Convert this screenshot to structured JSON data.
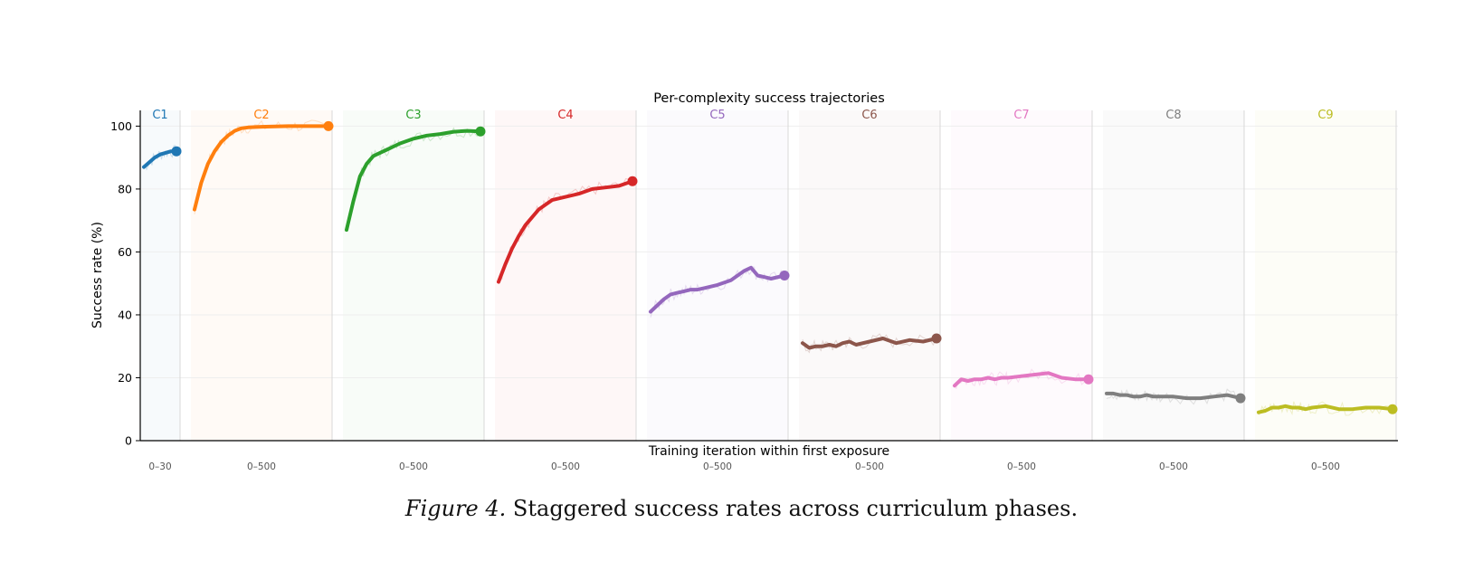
{
  "chart_data": {
    "type": "line",
    "title": "Per-complexity success trajectories",
    "xlabel": "Training iteration within first exposure",
    "ylabel": "Success rate (%)",
    "ylim": [
      0,
      105
    ],
    "yticks": [
      "0",
      "20",
      "40",
      "60",
      "80",
      "100"
    ],
    "grid": true,
    "series": [
      {
        "name": "C1",
        "range_label": "0–30",
        "color": "#1f77b4",
        "x": [
          0,
          5,
          10,
          15,
          20,
          25,
          30
        ],
        "values": [
          87,
          88.5,
          90,
          91,
          91.5,
          92,
          92
        ]
      },
      {
        "name": "C2",
        "range_label": "0–500",
        "color": "#ff7f0e",
        "x": [
          0,
          25,
          50,
          75,
          100,
          125,
          150,
          175,
          200,
          250,
          300,
          350,
          400,
          450,
          500
        ],
        "values": [
          73.5,
          82,
          88,
          92,
          95,
          97,
          98.5,
          99.3,
          99.6,
          99.8,
          99.9,
          100,
          100,
          100,
          100
        ]
      },
      {
        "name": "C3",
        "range_label": "0–500",
        "color": "#2ca02c",
        "x": [
          0,
          25,
          50,
          75,
          100,
          125,
          150,
          175,
          200,
          250,
          300,
          350,
          400,
          450,
          500
        ],
        "values": [
          67,
          76,
          84,
          88,
          90.5,
          91.5,
          92.5,
          93.5,
          94.5,
          96,
          97,
          97.5,
          98.2,
          98.5,
          98.3
        ]
      },
      {
        "name": "C4",
        "range_label": "0–500",
        "color": "#d62728",
        "x": [
          0,
          25,
          50,
          75,
          100,
          125,
          150,
          175,
          200,
          250,
          300,
          350,
          400,
          450,
          500
        ],
        "values": [
          50.5,
          56,
          61,
          65,
          68.5,
          71,
          73.5,
          75,
          76.5,
          77.5,
          78.5,
          80,
          80.5,
          81,
          82.5
        ]
      },
      {
        "name": "C5",
        "range_label": "0–500",
        "color": "#9467bd",
        "x": [
          0,
          25,
          50,
          75,
          100,
          125,
          150,
          175,
          200,
          250,
          300,
          350,
          375,
          400,
          425,
          450,
          500
        ],
        "values": [
          41,
          43,
          45,
          46.5,
          47,
          47.5,
          48,
          48,
          48.5,
          49.5,
          51,
          54,
          55,
          52.5,
          52,
          51.5,
          52.5
        ]
      },
      {
        "name": "C6",
        "range_label": "0–500",
        "color": "#8c564b",
        "x": [
          0,
          25,
          50,
          75,
          100,
          125,
          150,
          175,
          200,
          250,
          300,
          350,
          400,
          450,
          500
        ],
        "values": [
          31,
          29.5,
          30,
          30,
          30.5,
          30,
          31,
          31.5,
          30.5,
          31.5,
          32.5,
          31,
          32,
          31.5,
          32.5
        ]
      },
      {
        "name": "C7",
        "range_label": "0–500",
        "color": "#e377c2",
        "x": [
          0,
          25,
          50,
          75,
          100,
          125,
          150,
          175,
          200,
          250,
          300,
          350,
          400,
          450,
          500
        ],
        "values": [
          17.5,
          19.5,
          19,
          19.5,
          19.5,
          20,
          19.5,
          20,
          20,
          20.5,
          21,
          21.5,
          20,
          19.5,
          19.5
        ]
      },
      {
        "name": "C8",
        "range_label": "0–500",
        "color": "#7f7f7f",
        "x": [
          0,
          25,
          50,
          75,
          100,
          125,
          150,
          175,
          200,
          250,
          300,
          350,
          400,
          450,
          500
        ],
        "values": [
          15,
          15,
          14.5,
          14.5,
          14,
          14,
          14.5,
          14,
          14,
          14,
          13.5,
          13.5,
          14,
          14.5,
          13.5
        ]
      },
      {
        "name": "C9",
        "range_label": "0–500",
        "color": "#bcbd22",
        "x": [
          0,
          25,
          50,
          75,
          100,
          125,
          150,
          175,
          200,
          250,
          300,
          350,
          400,
          450,
          500
        ],
        "values": [
          9,
          9.5,
          10.5,
          10.5,
          11,
          10.5,
          10.5,
          10,
          10.5,
          11,
          10,
          10,
          10.5,
          10.5,
          10
        ]
      }
    ]
  },
  "caption": {
    "figure_label": "Figure 4.",
    "text": "Staggered success rates across curriculum phases."
  }
}
